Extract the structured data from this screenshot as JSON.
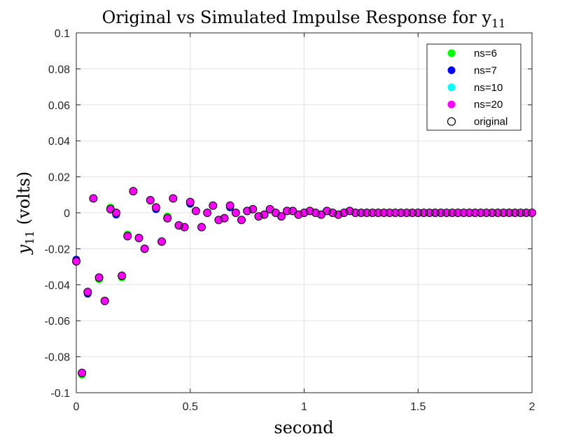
{
  "chart_data": {
    "type": "scatter",
    "title": "Original vs Simulated Impulse Response for y",
    "title_subscript": "11",
    "xlabel": "second",
    "ylabel": "y",
    "ylabel_subscript": "11",
    "ylabel_unit": "(volts)",
    "xlim": [
      0,
      2
    ],
    "ylim": [
      -0.1,
      0.1
    ],
    "xticks": [
      0,
      0.5,
      1,
      1.5,
      2
    ],
    "xtick_labels": [
      "0",
      "0.5",
      "1",
      "1.5",
      "2"
    ],
    "yticks": [
      -0.1,
      -0.08,
      -0.06,
      -0.04,
      -0.02,
      0,
      0.02,
      0.04,
      0.06,
      0.08,
      0.1
    ],
    "ytick_labels": [
      "-0.1",
      "-0.08",
      "-0.06",
      "-0.04",
      "-0.02",
      "0",
      "0.02",
      "0.04",
      "0.06",
      "0.08",
      "0.1"
    ],
    "grid": true,
    "legend_position": "top-right",
    "x": [
      0,
      0.025,
      0.05,
      0.075,
      0.1,
      0.125,
      0.15,
      0.175,
      0.2,
      0.225,
      0.25,
      0.275,
      0.3,
      0.325,
      0.35,
      0.375,
      0.4,
      0.425,
      0.45,
      0.475,
      0.5,
      0.525,
      0.55,
      0.575,
      0.6,
      0.625,
      0.65,
      0.675,
      0.7,
      0.725,
      0.75,
      0.775,
      0.8,
      0.825,
      0.85,
      0.875,
      0.9,
      0.925,
      0.95,
      0.975,
      1,
      1.025,
      1.05,
      1.075,
      1.1,
      1.125,
      1.15,
      1.175,
      1.2,
      1.225,
      1.25,
      1.275,
      1.3,
      1.325,
      1.35,
      1.375,
      1.4,
      1.425,
      1.45,
      1.475,
      1.5,
      1.525,
      1.55,
      1.575,
      1.6,
      1.625,
      1.65,
      1.675,
      1.7,
      1.725,
      1.75,
      1.775,
      1.8,
      1.825,
      1.85,
      1.875,
      1.9,
      1.925,
      1.95,
      1.975,
      2
    ],
    "series": [
      {
        "name": "ns=6",
        "color": "#00ff00",
        "marker": "filled",
        "values": [
          -0.027,
          -0.09,
          -0.044,
          0.008,
          -0.037,
          -0.049,
          0.003,
          0,
          -0.036,
          -0.012,
          0.012,
          -0.014,
          -0.02,
          0.007,
          0.002,
          -0.016,
          -0.002,
          0.008,
          -0.007,
          -0.008,
          0.005,
          0.001,
          -0.008,
          0,
          0.004,
          -0.004,
          -0.003,
          0.003,
          0,
          -0.004,
          0.001,
          0.002,
          -0.002,
          -0.001,
          0.002,
          0,
          -0.002,
          0.001,
          0.001,
          -0.001,
          0,
          0.001,
          0,
          -0.001,
          0.001,
          0,
          -0.001,
          0,
          0.001,
          0,
          0,
          0,
          0,
          0,
          0,
          0,
          0,
          0,
          0,
          0,
          0,
          0,
          0,
          0,
          0,
          0,
          0,
          0,
          0,
          0,
          0,
          0,
          0,
          0,
          0,
          0,
          0,
          0,
          0,
          0,
          0
        ]
      },
      {
        "name": "ns=7",
        "color": "#0000ff",
        "marker": "filled",
        "values": [
          -0.026,
          -0.089,
          -0.045,
          0.008,
          -0.036,
          -0.049,
          0.002,
          -0.001,
          -0.035,
          -0.013,
          0.012,
          -0.014,
          -0.02,
          0.007,
          0.002,
          -0.016,
          -0.003,
          0.008,
          -0.007,
          -0.008,
          0.005,
          0.001,
          -0.008,
          0,
          0.004,
          -0.004,
          -0.003,
          0.003,
          0,
          -0.004,
          0.001,
          0.002,
          -0.002,
          -0.001,
          0.002,
          0,
          -0.002,
          0.001,
          0.001,
          -0.001,
          0,
          0.001,
          0,
          -0.001,
          0.001,
          0,
          -0.001,
          0,
          0.001,
          0,
          0,
          0,
          0,
          0,
          0,
          0,
          0,
          0,
          0,
          0,
          0,
          0,
          0,
          0,
          0,
          0,
          0,
          0,
          0,
          0,
          0,
          0,
          0,
          0,
          0,
          0,
          0,
          0,
          0,
          0,
          0
        ]
      },
      {
        "name": "ns=10",
        "color": "#00ffff",
        "marker": "filled",
        "values": [
          -0.027,
          -0.089,
          -0.044,
          0.008,
          -0.036,
          -0.049,
          0.002,
          0,
          -0.035,
          -0.013,
          0.012,
          -0.014,
          -0.02,
          0.007,
          0.003,
          -0.016,
          -0.003,
          0.008,
          -0.007,
          -0.008,
          0.006,
          0.001,
          -0.008,
          0,
          0.004,
          -0.004,
          -0.003,
          0.004,
          0,
          -0.004,
          0.001,
          0.002,
          -0.002,
          -0.001,
          0.002,
          0,
          -0.002,
          0.001,
          0.001,
          -0.001,
          0,
          0.001,
          0,
          -0.001,
          0.001,
          0,
          -0.001,
          0,
          0.001,
          0,
          0,
          0,
          0,
          0,
          0,
          0,
          0,
          0,
          0,
          0,
          0,
          0,
          0,
          0,
          0,
          0,
          0,
          0,
          0,
          0,
          0,
          0,
          0,
          0,
          0,
          0,
          0,
          0,
          0,
          0,
          0
        ]
      },
      {
        "name": "ns=20",
        "color": "#ff00ff",
        "marker": "filled",
        "values": [
          -0.027,
          -0.089,
          -0.044,
          0.008,
          -0.036,
          -0.049,
          0.002,
          0,
          -0.035,
          -0.013,
          0.012,
          -0.014,
          -0.02,
          0.007,
          0.003,
          -0.016,
          -0.003,
          0.008,
          -0.007,
          -0.008,
          0.006,
          0.001,
          -0.008,
          0,
          0.004,
          -0.004,
          -0.003,
          0.004,
          0,
          -0.004,
          0.001,
          0.002,
          -0.002,
          -0.001,
          0.002,
          0,
          -0.002,
          0.001,
          0.001,
          -0.001,
          0,
          0.001,
          0,
          -0.001,
          0.001,
          0,
          -0.001,
          0,
          0.001,
          0,
          0,
          0,
          0,
          0,
          0,
          0,
          0,
          0,
          0,
          0,
          0,
          0,
          0,
          0,
          0,
          0,
          0,
          0,
          0,
          0,
          0,
          0,
          0,
          0,
          0,
          0,
          0,
          0,
          0,
          0,
          0
        ]
      },
      {
        "name": "original",
        "color": "#000000",
        "marker": "open",
        "values": [
          -0.027,
          -0.089,
          -0.044,
          0.008,
          -0.036,
          -0.049,
          0.002,
          0,
          -0.035,
          -0.013,
          0.012,
          -0.014,
          -0.02,
          0.007,
          0.003,
          -0.016,
          -0.003,
          0.008,
          -0.007,
          -0.008,
          0.006,
          0.001,
          -0.008,
          0,
          0.004,
          -0.004,
          -0.003,
          0.004,
          0,
          -0.004,
          0.001,
          0.002,
          -0.002,
          -0.001,
          0.002,
          0,
          -0.002,
          0.001,
          0.001,
          -0.001,
          0,
          0.001,
          0,
          -0.001,
          0.001,
          0,
          -0.001,
          0,
          0.001,
          0,
          0,
          0,
          0,
          0,
          0,
          0,
          0,
          0,
          0,
          0,
          0,
          0,
          0,
          0,
          0,
          0,
          0,
          0,
          0,
          0,
          0,
          0,
          0,
          0,
          0,
          0,
          0,
          0,
          0,
          0,
          0
        ]
      }
    ]
  }
}
